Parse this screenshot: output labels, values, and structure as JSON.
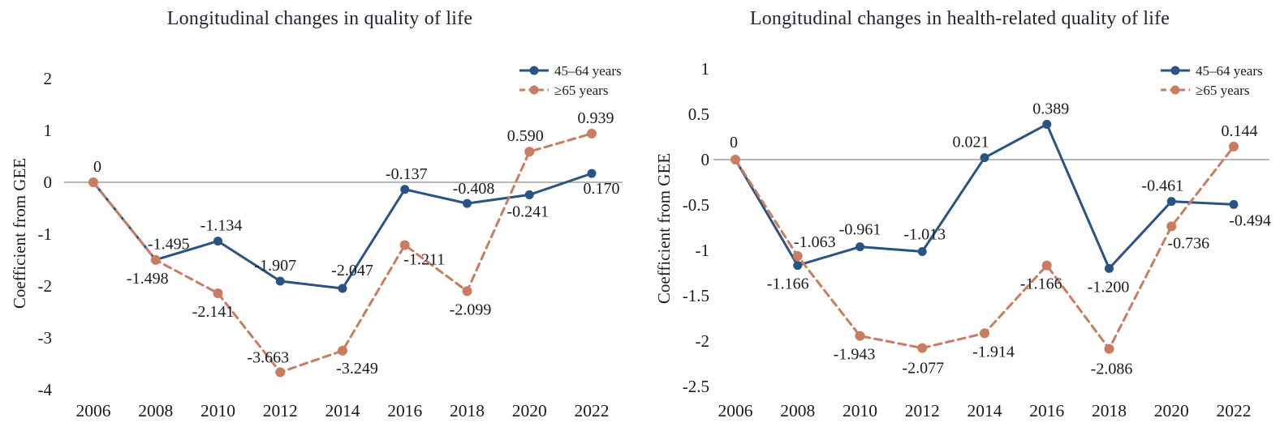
{
  "figure": {
    "background": "#ffffff"
  },
  "colors": {
    "series_45_64": "#2A5385",
    "series_65_plus": "#C97C60",
    "zero_line": "#8C8C8C",
    "text": "#1B1B1B",
    "title_text": "#1F2430"
  },
  "chart_data": [
    {
      "type": "line",
      "title": "Longitudinal changes in quality of life",
      "ylabel": "Coefficient from GEE",
      "xlabel": "",
      "categories": [
        "2006",
        "2008",
        "2010",
        "2012",
        "2014",
        "2016",
        "2018",
        "2020",
        "2022"
      ],
      "ylim": [
        -4,
        2
      ],
      "ytick_labels": [
        "2",
        "1",
        "0",
        "-1",
        "-2",
        "-3",
        "-4"
      ],
      "grid": false,
      "zero_line": true,
      "legend_position": "top-right",
      "series": [
        {
          "name": "45–64 years",
          "color_key": "series_45_64",
          "line_style": "solid",
          "marker": "circle",
          "values": [
            0,
            -1.495,
            -1.134,
            -1.907,
            -2.047,
            -0.137,
            -0.408,
            -0.241,
            0.17
          ],
          "point_labels": [
            null,
            "-1.495",
            "-1.134",
            "-1.907",
            "-2.047",
            "-0.137",
            "-0.408",
            "-0.241",
            "0.170"
          ],
          "label_offsets": [
            [
              0,
              0
            ],
            [
              16,
              -13
            ],
            [
              4,
              -13
            ],
            [
              -6,
              -13
            ],
            [
              12,
              -16
            ],
            [
              2,
              -13
            ],
            [
              8,
              -12
            ],
            [
              -2,
              27
            ],
            [
              12,
              25
            ]
          ]
        },
        {
          "name": "≥65 years",
          "color_key": "series_65_plus",
          "line_style": "dashed",
          "marker": "circle",
          "values": [
            0,
            -1.498,
            -2.141,
            -3.663,
            -3.249,
            -1.211,
            -2.099,
            0.59,
            0.939
          ],
          "point_labels": [
            "0",
            "-1.498",
            "-2.141",
            "-3.663",
            "-3.249",
            "-1.211",
            "-2.099",
            "0.590",
            "0.939"
          ],
          "label_offsets": [
            [
              5,
              -13
            ],
            [
              -10,
              29
            ],
            [
              -6,
              29
            ],
            [
              -15,
              -12
            ],
            [
              18,
              28
            ],
            [
              24,
              24
            ],
            [
              4,
              29
            ],
            [
              -5,
              -13
            ],
            [
              5,
              -13
            ]
          ]
        }
      ]
    },
    {
      "type": "line",
      "title": "Longitudinal changes in health-related quality of life",
      "ylabel": "Coefficient from GEE",
      "xlabel": "",
      "categories": [
        "2006",
        "2008",
        "2010",
        "2012",
        "2014",
        "2016",
        "2018",
        "2020",
        "2022"
      ],
      "ylim": [
        -2.5,
        1
      ],
      "ytick_labels": [
        "1",
        "0.5",
        "0",
        "-0.5",
        "-1",
        "-1.5",
        "-2",
        "-2.5"
      ],
      "grid": false,
      "zero_line": true,
      "legend_position": "top-right",
      "series": [
        {
          "name": "45–64 years",
          "color_key": "series_45_64",
          "line_style": "solid",
          "marker": "circle",
          "values": [
            0,
            -1.166,
            -0.961,
            -1.013,
            0.021,
            0.389,
            -1.2,
            -0.461,
            -0.494
          ],
          "point_labels": [
            null,
            "-1.166",
            "-0.961",
            "-1.013",
            "0.021",
            "0.389",
            "-1.200",
            "-0.461",
            "-0.494"
          ],
          "label_offsets": [
            [
              0,
              0
            ],
            [
              -12,
              29
            ],
            [
              0,
              -15
            ],
            [
              3,
              -15
            ],
            [
              -17,
              -13
            ],
            [
              5,
              -13
            ],
            [
              -1,
              29
            ],
            [
              -11,
              -13
            ],
            [
              20,
              26
            ]
          ]
        },
        {
          "name": "≥65 years",
          "color_key": "series_65_plus",
          "line_style": "dashed",
          "marker": "circle",
          "values": [
            0,
            -1.063,
            -1.943,
            -2.077,
            -1.914,
            -1.166,
            -2.086,
            -0.736,
            0.144
          ],
          "point_labels": [
            "0",
            "-1.063",
            "-1.943",
            "-2.077",
            "-1.914",
            "-1.166",
            "-2.086",
            "-0.736",
            "0.144"
          ],
          "label_offsets": [
            [
              -2,
              -15
            ],
            [
              21,
              -11
            ],
            [
              -7,
              29
            ],
            [
              1,
              31
            ],
            [
              11,
              29
            ],
            [
              -7,
              29
            ],
            [
              3,
              31
            ],
            [
              21,
              27
            ],
            [
              7,
              -13
            ]
          ]
        }
      ]
    }
  ]
}
